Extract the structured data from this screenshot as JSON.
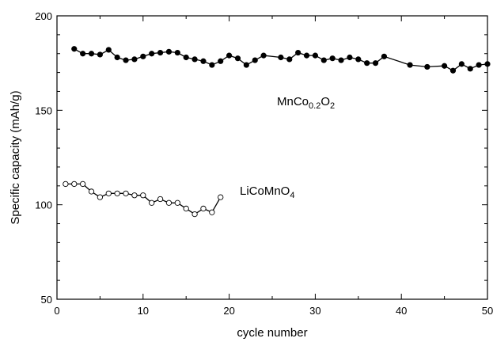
{
  "chart_data": {
    "type": "line",
    "title": "",
    "xlabel": "cycle number",
    "ylabel": "Specific capacity (mAh/g)",
    "xlim": [
      0,
      50
    ],
    "ylim": [
      50,
      200
    ],
    "x_ticks": [
      0,
      10,
      20,
      30,
      40,
      50
    ],
    "y_ticks": [
      50,
      100,
      150,
      200
    ],
    "grid": false,
    "legend": "none",
    "series": [
      {
        "name": "MnCo0.2O2",
        "marker": "filled-circle",
        "color": "#000000",
        "x": [
          2,
          3,
          4,
          5,
          6,
          7,
          8,
          9,
          10,
          11,
          12,
          13,
          14,
          15,
          16,
          17,
          18,
          19,
          20,
          21,
          22,
          23,
          24,
          26,
          27,
          28,
          29,
          30,
          31,
          32,
          33,
          34,
          35,
          36,
          37,
          38,
          41,
          43,
          45,
          46,
          47,
          48,
          49,
          50
        ],
        "y": [
          182.5,
          180,
          180,
          179.5,
          182,
          178,
          176.5,
          177,
          178.5,
          180,
          180.5,
          181,
          180.5,
          178,
          177,
          176,
          174,
          176,
          179,
          177.5,
          174,
          176.5,
          179,
          178,
          177,
          180.5,
          179,
          179,
          176.5,
          177.5,
          176.5,
          178,
          177,
          175,
          175,
          178.5,
          174,
          173,
          173.5,
          171,
          174.5,
          172,
          174,
          174.5
        ]
      },
      {
        "name": "LiCoMnO4",
        "marker": "open-circle",
        "color": "#000000",
        "x": [
          1,
          2,
          3,
          4,
          5,
          6,
          7,
          8,
          9,
          10,
          11,
          12,
          13,
          14,
          15,
          16,
          17,
          18,
          19
        ],
        "y": [
          111,
          111,
          111,
          107,
          104,
          106,
          106,
          106,
          105,
          105,
          101,
          103,
          101,
          101,
          98,
          95,
          98,
          96,
          104
        ]
      }
    ],
    "annotations": [
      {
        "series": 0,
        "base": "MnCo",
        "sub1": "0.2",
        "mid": "O",
        "sub2": "2"
      },
      {
        "series": 1,
        "base": "LiCoMnO",
        "sub1": "4"
      }
    ]
  }
}
